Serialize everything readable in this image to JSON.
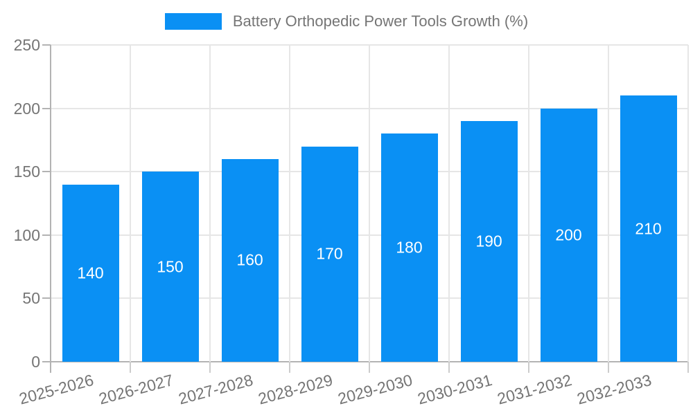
{
  "legend": {
    "label": "Battery Orthopedic Power Tools Growth (%)"
  },
  "chart_data": {
    "type": "bar",
    "title": "",
    "xlabel": "",
    "ylabel": "",
    "categories": [
      "2025-2026",
      "2026-2027",
      "2027-2028",
      "2028-2029",
      "2029-2030",
      "2030-2031",
      "2031-2032",
      "2032-2033"
    ],
    "values": [
      140,
      150,
      160,
      170,
      180,
      190,
      200,
      210
    ],
    "series_name": "Battery Orthopedic Power Tools Growth (%)",
    "ylim": [
      0,
      250
    ],
    "yticks": [
      0,
      50,
      100,
      150,
      200,
      250
    ],
    "grid": true,
    "legend_position": "top",
    "x_tick_rotation_deg": -15,
    "colors": {
      "bar": "#0a90f4",
      "bar_label": "#ffffff",
      "axis_text": "#757575",
      "grid_line": "#e6e6e6",
      "axis_line": "#b3b3b3",
      "minor_tick": "#cccccc"
    }
  }
}
